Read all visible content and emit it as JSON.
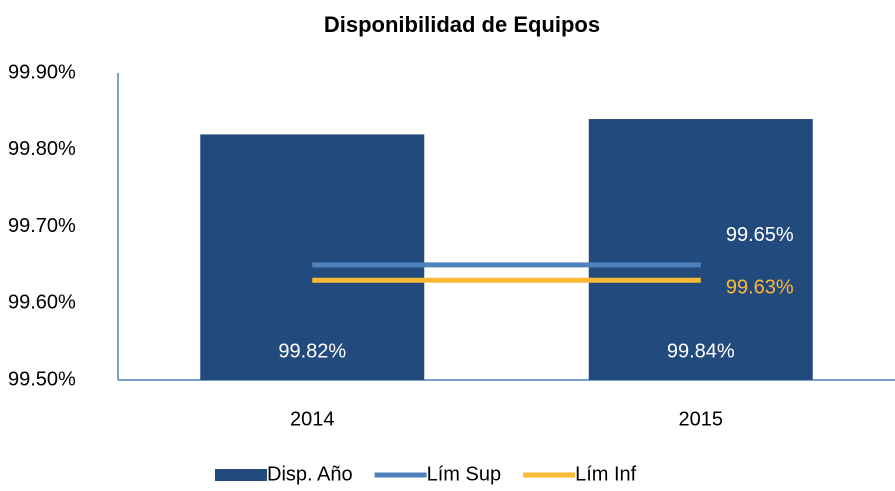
{
  "chart_data": {
    "type": "bar",
    "title": "Disponibilidad de Equipos",
    "categories": [
      "2014",
      "2015"
    ],
    "series": [
      {
        "name": "Disp. Año",
        "type": "bar",
        "color": "#234a7c",
        "values": [
          99.82,
          99.84
        ],
        "value_labels": [
          "99.82%",
          "99.84%"
        ],
        "label_color": "#ffffff"
      },
      {
        "name": "Lím Sup",
        "type": "line",
        "color": "#4f81bd",
        "values": [
          99.65,
          99.65
        ],
        "value_labels": [
          null,
          "99.65%"
        ],
        "label_color": "#ffffff"
      },
      {
        "name": "Lím Inf",
        "type": "line",
        "color": "#fbb935",
        "values": [
          99.63,
          99.63
        ],
        "value_labels": [
          null,
          "99.63%"
        ],
        "label_color": "#fbb935"
      }
    ],
    "ylim": [
      99.5,
      99.9
    ],
    "yticks": [
      {
        "value": 99.5,
        "label": "99.50%"
      },
      {
        "value": 99.6,
        "label": "99.60%"
      },
      {
        "value": 99.7,
        "label": "99.70%"
      },
      {
        "value": 99.8,
        "label": "99.80%"
      },
      {
        "value": 99.9,
        "label": "99.90%"
      }
    ],
    "grid": false,
    "legend": "bottom"
  }
}
